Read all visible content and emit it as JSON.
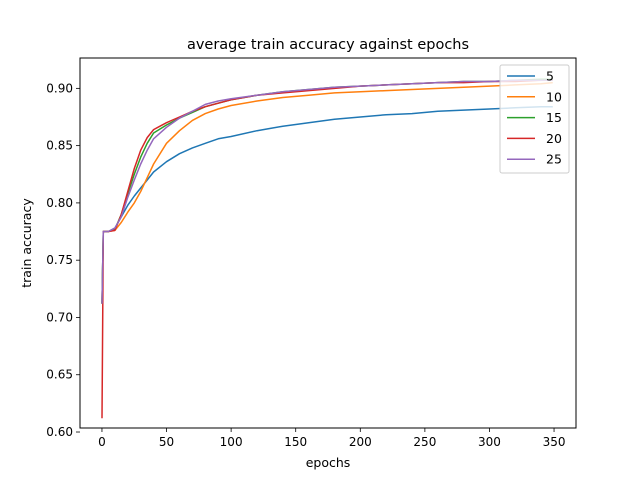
{
  "chart_data": {
    "type": "line",
    "title": "average train accuracy against epochs",
    "xlabel": "epochs",
    "ylabel": "train accuracy",
    "xlim": [
      -17,
      367
    ],
    "ylim": [
      0.6035,
      0.9265
    ],
    "xticks": [
      0,
      50,
      100,
      150,
      200,
      250,
      300,
      350
    ],
    "xtick_labels": [
      "0",
      "50",
      "100",
      "150",
      "200",
      "250",
      "300",
      "350"
    ],
    "yticks": [
      0.6,
      0.65,
      0.7,
      0.75,
      0.8,
      0.85,
      0.9
    ],
    "ytick_labels": [
      "0.60",
      "0.65",
      "0.70",
      "0.75",
      "0.80",
      "0.85",
      "0.90"
    ],
    "grid": false,
    "legend_position": "top-right",
    "series": [
      {
        "name": "5",
        "color": "#1f77b4",
        "x": [
          0,
          1,
          5,
          10,
          15,
          20,
          25,
          30,
          35,
          40,
          50,
          60,
          70,
          80,
          90,
          100,
          120,
          140,
          160,
          180,
          200,
          220,
          240,
          260,
          280,
          300,
          320,
          340,
          349
        ],
        "y": [
          0.712,
          0.775,
          0.775,
          0.778,
          0.788,
          0.798,
          0.806,
          0.813,
          0.82,
          0.827,
          0.836,
          0.843,
          0.848,
          0.852,
          0.856,
          0.858,
          0.863,
          0.867,
          0.87,
          0.873,
          0.875,
          0.877,
          0.878,
          0.88,
          0.881,
          0.882,
          0.883,
          0.884,
          0.884
        ]
      },
      {
        "name": "10",
        "color": "#ff7f0e",
        "x": [
          0,
          1,
          5,
          10,
          15,
          20,
          25,
          30,
          35,
          40,
          50,
          60,
          70,
          80,
          90,
          100,
          120,
          140,
          160,
          180,
          200,
          220,
          240,
          260,
          280,
          300,
          320,
          340,
          349
        ],
        "y": [
          0.712,
          0.775,
          0.775,
          0.776,
          0.783,
          0.792,
          0.8,
          0.81,
          0.822,
          0.834,
          0.852,
          0.863,
          0.872,
          0.878,
          0.882,
          0.885,
          0.889,
          0.892,
          0.894,
          0.896,
          0.897,
          0.898,
          0.899,
          0.9,
          0.901,
          0.902,
          0.903,
          0.904,
          0.905
        ]
      },
      {
        "name": "15",
        "color": "#2ca02c",
        "x": [
          0,
          1,
          5,
          10,
          15,
          20,
          25,
          30,
          35,
          40,
          50,
          60,
          70,
          80,
          90,
          100,
          120,
          140,
          160,
          180,
          200,
          220,
          240,
          260,
          280,
          300,
          320,
          340,
          349
        ],
        "y": [
          0.712,
          0.775,
          0.775,
          0.777,
          0.79,
          0.808,
          0.825,
          0.84,
          0.852,
          0.861,
          0.868,
          0.874,
          0.879,
          0.884,
          0.887,
          0.89,
          0.894,
          0.897,
          0.899,
          0.901,
          0.902,
          0.903,
          0.904,
          0.905,
          0.906,
          0.906,
          0.907,
          0.908,
          0.908
        ]
      },
      {
        "name": "20",
        "color": "#d62728",
        "x": [
          0,
          1,
          5,
          10,
          15,
          20,
          25,
          30,
          35,
          40,
          50,
          60,
          70,
          80,
          90,
          100,
          120,
          140,
          160,
          180,
          200,
          220,
          240,
          260,
          280,
          300,
          320,
          340,
          349
        ],
        "y": [
          0.612,
          0.775,
          0.775,
          0.776,
          0.79,
          0.81,
          0.83,
          0.846,
          0.857,
          0.864,
          0.87,
          0.875,
          0.88,
          0.884,
          0.887,
          0.89,
          0.894,
          0.896,
          0.898,
          0.9,
          0.902,
          0.903,
          0.904,
          0.905,
          0.905,
          0.906,
          0.906,
          0.907,
          0.907
        ]
      },
      {
        "name": "25",
        "color": "#9467bd",
        "x": [
          0,
          1,
          5,
          10,
          15,
          20,
          25,
          30,
          35,
          40,
          50,
          60,
          70,
          80,
          90,
          100,
          120,
          140,
          160,
          180,
          200,
          220,
          240,
          260,
          280,
          300,
          320,
          340,
          349
        ],
        "y": [
          0.712,
          0.775,
          0.775,
          0.778,
          0.788,
          0.805,
          0.82,
          0.834,
          0.846,
          0.856,
          0.866,
          0.874,
          0.88,
          0.886,
          0.889,
          0.891,
          0.894,
          0.897,
          0.899,
          0.901,
          0.902,
          0.903,
          0.904,
          0.905,
          0.906,
          0.906,
          0.907,
          0.907,
          0.907
        ]
      }
    ]
  }
}
